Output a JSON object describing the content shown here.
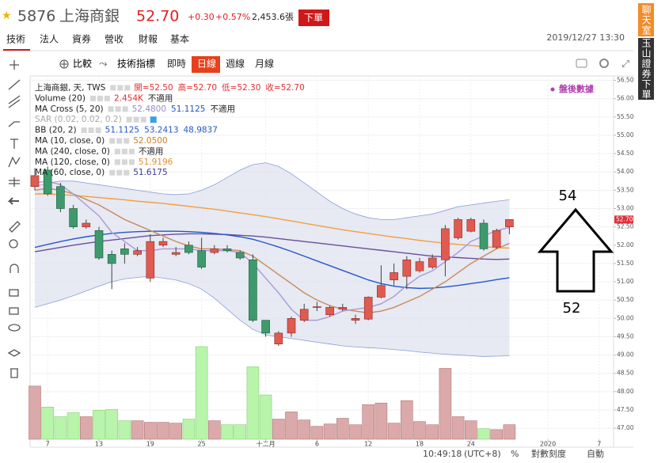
{
  "header": {
    "symbol": "5876",
    "name": "上海商銀",
    "price": "52.70",
    "change": "+0.30",
    "change_pct": "+0.57%",
    "volume": "2,453.6張",
    "order_button": "下單",
    "datetime": "2019/12/27 13:30"
  },
  "tabs": [
    "技術",
    "法人",
    "資券",
    "營收",
    "財報",
    "基本"
  ],
  "toolbar": {
    "compare": "比較",
    "indicators": "技術指標",
    "periods": [
      "即時",
      "日線",
      "週線",
      "月線"
    ]
  },
  "side_buttons": [
    "聊天室",
    "玉山證券下單"
  ],
  "status": {
    "time": "10:49:18",
    "timezone": "(UTC+8)",
    "percent": "%",
    "log_scale": "對數刻度",
    "auto": "自動"
  },
  "chart_data": {
    "type": "candlestick",
    "after_hours": "盤後數據",
    "categories": [
      null,
      "7",
      null,
      null,
      null,
      "13",
      null,
      null,
      null,
      "19",
      null,
      null,
      null,
      "25",
      null,
      null,
      null,
      null,
      "十二月",
      null,
      null,
      null,
      "6",
      null,
      null,
      null,
      "12",
      null,
      null,
      null,
      "18",
      null,
      null,
      null,
      "24",
      null,
      null,
      null,
      null,
      null,
      "2020",
      null,
      null,
      null,
      "7"
    ],
    "open": [
      53.6,
      54.05,
      53.6,
      53.0,
      52.5,
      52.4,
      51.75,
      51.9,
      51.75,
      51.1,
      52.0,
      51.75,
      52.0,
      51.85,
      51.8,
      51.9,
      51.8,
      51.6,
      49.95,
      49.3,
      49.6,
      49.95,
      50.3,
      50.1,
      50.25,
      49.95,
      49.98,
      50.58,
      51.05,
      51.15,
      51.3,
      51.4,
      51.6,
      52.2,
      52.38,
      52.6,
      51.95,
      52.5,
      null,
      null,
      null,
      null,
      null,
      null,
      null
    ],
    "high": [
      54.1,
      54.15,
      53.7,
      53.1,
      52.7,
      52.5,
      51.85,
      52.05,
      51.95,
      52.3,
      52.2,
      51.95,
      52.1,
      52.2,
      52.0,
      52.0,
      51.85,
      51.75,
      49.95,
      49.65,
      50.05,
      50.4,
      50.45,
      50.35,
      50.4,
      50.1,
      50.6,
      51.45,
      51.5,
      51.7,
      51.65,
      51.75,
      52.55,
      52.75,
      52.75,
      52.7,
      52.45,
      52.7,
      null,
      null,
      null,
      null,
      null,
      null,
      null
    ],
    "low": [
      53.5,
      53.35,
      52.9,
      52.45,
      52.45,
      51.6,
      50.8,
      51.5,
      51.7,
      51.0,
      51.95,
      51.7,
      51.75,
      51.35,
      51.75,
      51.8,
      51.6,
      49.9,
      49.5,
      49.25,
      49.5,
      49.9,
      50.2,
      50.05,
      50.2,
      49.85,
      49.95,
      50.55,
      50.9,
      50.8,
      51.25,
      51.35,
      51.15,
      52.15,
      52.35,
      51.85,
      51.9,
      52.3,
      null,
      null,
      null,
      null,
      null,
      null,
      null
    ],
    "close": [
      53.9,
      53.4,
      53.0,
      52.5,
      52.6,
      51.65,
      51.5,
      51.75,
      51.85,
      52.1,
      52.1,
      51.8,
      51.8,
      51.4,
      51.9,
      51.85,
      51.65,
      49.95,
      49.6,
      49.6,
      50.0,
      50.25,
      50.32,
      50.3,
      50.3,
      50.0,
      50.58,
      50.9,
      51.25,
      51.6,
      51.55,
      51.65,
      52.45,
      52.7,
      52.7,
      51.9,
      52.4,
      52.7,
      null,
      null,
      null,
      null,
      null,
      null,
      null
    ],
    "volume": [
      8980,
      5440,
      3810,
      4490,
      3810,
      4900,
      5030,
      3130,
      3130,
      2860,
      2860,
      2720,
      3400,
      15640,
      3130,
      2450,
      2450,
      12240,
      7480,
      3400,
      4620,
      3260,
      2180,
      2580,
      3540,
      2450,
      5850,
      6120,
      2720,
      6530,
      2990,
      2450,
      11970,
      3810,
      3130,
      1770,
      1630,
      2454,
      null,
      null,
      null,
      null,
      null,
      null,
      null
    ],
    "up_color": "#e05a50",
    "down_color": "#3d9a6c",
    "volume_up_color": "#dba9a9",
    "volume_down_color": "#b9f4ab",
    "band_color": "#dfe2ef",
    "bands": {
      "color": "#8aa0d8",
      "upper": [
        53.6,
        53.7,
        53.75,
        53.75,
        53.7,
        53.65,
        53.6,
        53.55,
        53.5,
        53.45,
        53.4,
        53.38,
        53.4,
        53.5,
        53.65,
        53.85,
        54.05,
        54.2,
        54.25,
        54.15,
        53.95,
        53.7,
        53.45,
        53.2,
        53.0,
        52.85,
        52.75,
        52.7,
        52.7,
        52.75,
        52.8,
        52.85,
        52.95,
        53.05,
        53.1,
        53.15,
        53.2,
        53.24,
        null,
        null,
        null,
        null,
        null,
        null,
        null
      ],
      "lower": [
        50.3,
        50.4,
        50.5,
        50.62,
        50.75,
        50.88,
        51.0,
        51.08,
        51.12,
        51.15,
        51.1,
        51.05,
        50.95,
        50.8,
        50.55,
        50.25,
        49.95,
        49.7,
        49.55,
        49.5,
        49.45,
        49.4,
        49.35,
        49.3,
        49.25,
        49.22,
        49.2,
        49.18,
        49.15,
        49.12,
        49.08,
        49.05,
        49.02,
        49.0,
        48.98,
        48.96,
        48.97,
        48.98,
        null,
        null,
        null,
        null,
        null,
        null,
        null
      ]
    },
    "series": [
      {
        "color": "#f0a040",
        "values": [
          53.4,
          53.4,
          53.38,
          53.36,
          53.33,
          53.3,
          53.27,
          53.24,
          53.2,
          53.17,
          53.14,
          53.1,
          53.06,
          53.02,
          52.98,
          52.93,
          52.88,
          52.83,
          52.78,
          52.72,
          52.66,
          52.6,
          52.54,
          52.48,
          52.42,
          52.37,
          52.32,
          52.27,
          52.22,
          52.18,
          52.13,
          52.09,
          52.05,
          52.02,
          51.99,
          51.96,
          51.93,
          51.92,
          null,
          null,
          null,
          null,
          null,
          null,
          null
        ]
      },
      {
        "color": "#6a4f9a",
        "values": [
          51.82,
          51.88,
          51.94,
          52.0,
          52.05,
          52.1,
          52.14,
          52.18,
          52.22,
          52.26,
          52.28,
          52.3,
          52.31,
          52.31,
          52.3,
          52.29,
          52.27,
          52.25,
          52.22,
          52.18,
          52.14,
          52.1,
          52.06,
          52.02,
          51.98,
          51.94,
          51.9,
          51.86,
          51.82,
          51.78,
          51.74,
          51.7,
          51.68,
          51.66,
          51.64,
          51.62,
          51.61,
          51.62,
          null,
          null,
          null,
          null,
          null,
          null,
          null
        ]
      },
      {
        "color": "#2458c8",
        "values": [
          51.94,
          52.02,
          52.1,
          52.17,
          52.23,
          52.28,
          52.32,
          52.35,
          52.37,
          52.38,
          52.38,
          52.38,
          52.37,
          52.35,
          52.32,
          52.28,
          52.23,
          52.16,
          52.06,
          51.95,
          51.83,
          51.7,
          51.57,
          51.44,
          51.31,
          51.18,
          51.05,
          50.95,
          50.88,
          50.84,
          50.82,
          50.83,
          50.86,
          50.9,
          50.95,
          51.0,
          51.06,
          51.11,
          null,
          null,
          null,
          null,
          null,
          null,
          null
        ]
      },
      {
        "color": "#c98a5a",
        "values": [
          53.5,
          53.55,
          53.5,
          53.4,
          53.25,
          53.1,
          52.9,
          52.7,
          52.55,
          52.4,
          52.25,
          52.1,
          51.98,
          51.9,
          51.9,
          51.88,
          51.85,
          51.7,
          51.45,
          51.2,
          50.95,
          50.7,
          50.5,
          50.35,
          50.25,
          50.2,
          50.15,
          50.2,
          50.3,
          50.45,
          50.6,
          50.8,
          51.0,
          51.25,
          51.5,
          51.7,
          51.9,
          52.05,
          null,
          null,
          null,
          null,
          null,
          null,
          null
        ]
      },
      {
        "color": "#a89ad8",
        "values": [
          53.7,
          53.75,
          53.65,
          53.4,
          53.1,
          52.8,
          52.35,
          52.1,
          51.85,
          51.85,
          51.9,
          51.9,
          51.9,
          51.85,
          51.85,
          51.85,
          51.8,
          51.5,
          51.1,
          50.7,
          50.25,
          49.95,
          49.95,
          50.05,
          50.2,
          50.25,
          50.3,
          50.4,
          50.6,
          50.9,
          51.15,
          51.3,
          51.55,
          51.8,
          52.1,
          52.25,
          52.4,
          52.48,
          null,
          null,
          null,
          null,
          null,
          null,
          null
        ]
      }
    ],
    "legend": [
      {
        "label": "上海商銀, 天, TWS",
        "values": [
          "開=52.50",
          "高=52.70",
          "低=52.30",
          "收=52.70"
        ],
        "colors": [
          "#e03030",
          "#e03030",
          "#e03030",
          "#e03030"
        ]
      },
      {
        "label": "Volume (20)",
        "values": [
          "2.454K",
          "不適用"
        ],
        "colors": [
          "#e03030",
          "#222222"
        ]
      },
      {
        "label": "MA Cross (5, 20)",
        "values": [
          "52.4800",
          "51.1125",
          "不適用"
        ],
        "colors": [
          "#9a8cc8",
          "#2458c8",
          "#222222"
        ]
      },
      {
        "label": "SAR (0.02, 0.02, 0.2)",
        "values": [],
        "colors": []
      },
      {
        "label": "BB (20, 2)",
        "values": [
          "51.1125",
          "53.2413",
          "48.9837"
        ],
        "colors": [
          "#2458c8",
          "#2458c8",
          "#2458c8"
        ]
      },
      {
        "label": "MA (10, close, 0)",
        "values": [
          "52.0500"
        ],
        "colors": [
          "#d08020"
        ]
      },
      {
        "label": "MA (240, close, 0)",
        "values": [
          "不適用"
        ],
        "colors": [
          "#222222"
        ]
      },
      {
        "label": "MA (120, close, 0)",
        "values": [
          "51.9196"
        ],
        "colors": [
          "#e09030"
        ]
      },
      {
        "label": "MA (60, close, 0)",
        "values": [
          "51.6175"
        ],
        "colors": [
          "#3a3aa0"
        ]
      }
    ],
    "annotations": [
      "54",
      "52"
    ],
    "ylim": [
      46.7,
      56.62
    ],
    "yticks": [
      {
        "value": 56.5,
        "label": "56.50"
      },
      {
        "value": 56,
        "label": "56.00"
      },
      {
        "value": 55.5,
        "label": "55.50"
      },
      {
        "value": 55,
        "label": "55.00"
      },
      {
        "value": 54.5,
        "label": "54.50"
      },
      {
        "value": 54,
        "label": "54.00"
      },
      {
        "value": 53.5,
        "label": "53.50"
      },
      {
        "value": 53,
        "label": "53.00"
      },
      {
        "value": 52.5,
        "label": "52.50"
      },
      {
        "value": 52,
        "label": "52.00"
      },
      {
        "value": 51.5,
        "label": "51.50"
      },
      {
        "value": 51,
        "label": "51.00"
      },
      {
        "value": 50.5,
        "label": "50.50"
      },
      {
        "value": 50,
        "label": "50.00"
      },
      {
        "value": 49.5,
        "label": "49.50"
      },
      {
        "value": 49,
        "label": "49.00"
      },
      {
        "value": 48.5,
        "label": "48.50"
      },
      {
        "value": 48,
        "label": "48.00"
      },
      {
        "value": 47.5,
        "label": "47.50"
      },
      {
        "value": 47,
        "label": "47.00"
      }
    ],
    "grid": true
  }
}
